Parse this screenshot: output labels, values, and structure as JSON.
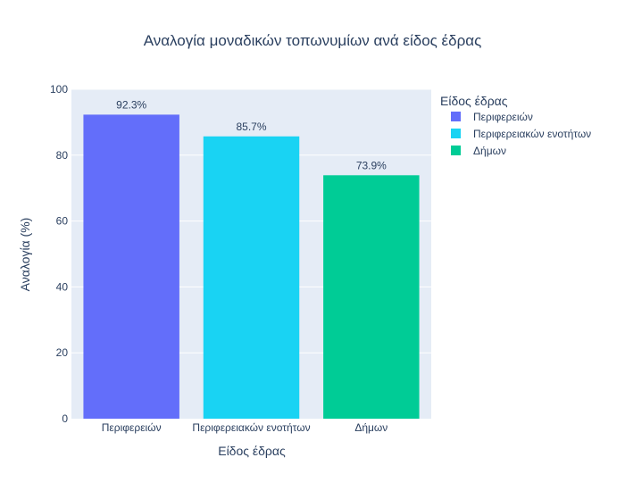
{
  "chart_data": {
    "type": "bar",
    "title": "Αναλογία μοναδικών τοπωνυμίων ανά είδος έδρας",
    "xlabel": "Είδος έδρας",
    "ylabel": "Αναλογία (%)",
    "ylim": [
      0,
      100
    ],
    "yticks": [
      0,
      20,
      40,
      60,
      80,
      100
    ],
    "grid": true,
    "legend": {
      "title": "Είδος έδρας",
      "placement": "right"
    },
    "categories": [
      "Περιφερειών",
      "Περιφερειακών ενοτήτων",
      "Δήμων"
    ],
    "values": [
      92.3,
      85.7,
      73.9
    ],
    "value_labels": [
      "92.3%",
      "85.7%",
      "73.9%"
    ],
    "colors": [
      "#636efa",
      "#19d3f3",
      "#00cc96"
    ],
    "series": [
      {
        "name": "Περιφερειών",
        "color": "#636efa"
      },
      {
        "name": "Περιφερειακών ενοτήτων",
        "color": "#19d3f3"
      },
      {
        "name": "Δήμων",
        "color": "#00cc96"
      }
    ],
    "plot_background": "#e5ecf6",
    "gridline_color": "#ffffff"
  }
}
